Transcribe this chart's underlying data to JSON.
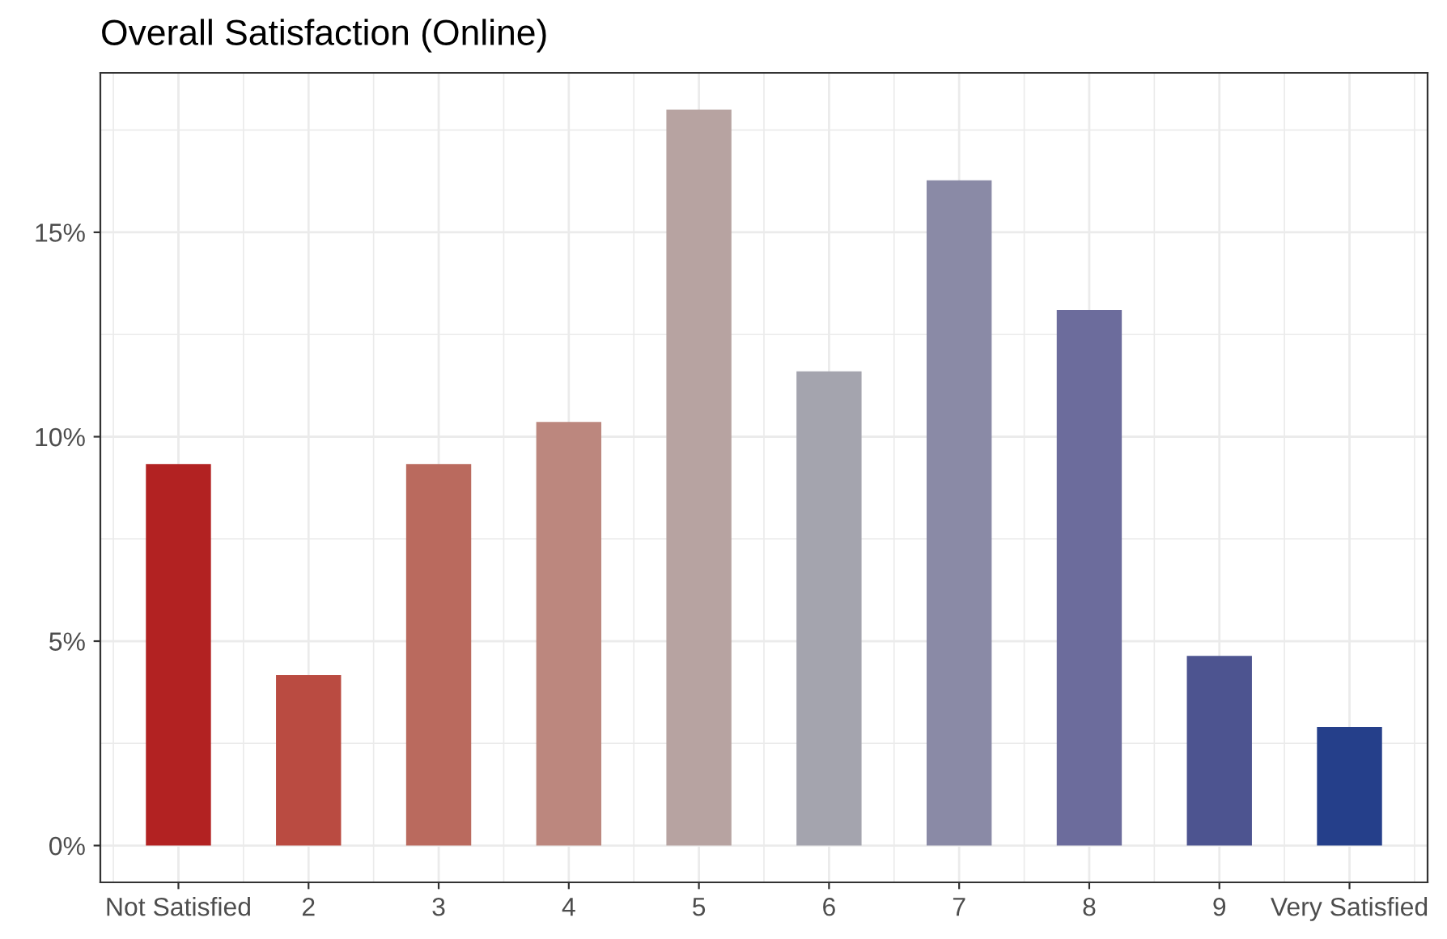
{
  "chart_data": {
    "type": "bar",
    "title": "Overall Satisfaction (Online)",
    "categories": [
      "Not Satisfied",
      "2",
      "3",
      "4",
      "5",
      "6",
      "7",
      "8",
      "9",
      "Very Satisfied"
    ],
    "values": [
      9.33,
      4.17,
      9.33,
      10.36,
      18.0,
      11.6,
      16.27,
      13.1,
      4.64,
      2.9
    ],
    "colors": [
      "#b22222",
      "#ba4b41",
      "#ba6a5e",
      "#bc877e",
      "#b7a3a1",
      "#a4a4ae",
      "#8a8aa6",
      "#6c6c9c",
      "#4d5490",
      "#253f8a"
    ],
    "ylim": [
      -0.9,
      18.9
    ],
    "yticks": [
      {
        "value": 0,
        "label": "0%"
      },
      {
        "value": 5,
        "label": "5%"
      },
      {
        "value": 10,
        "label": "10%"
      },
      {
        "value": 15,
        "label": "15%"
      }
    ],
    "grid": true
  }
}
